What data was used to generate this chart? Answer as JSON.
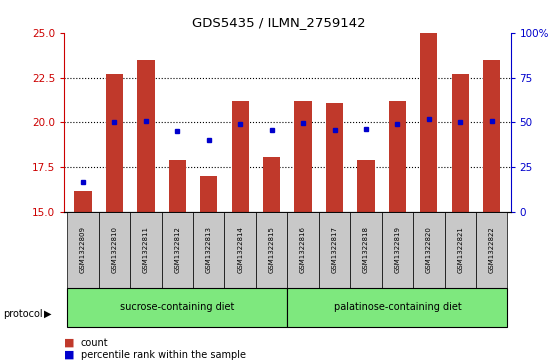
{
  "title": "GDS5435 / ILMN_2759142",
  "samples": [
    "GSM1322809",
    "GSM1322810",
    "GSM1322811",
    "GSM1322812",
    "GSM1322813",
    "GSM1322814",
    "GSM1322815",
    "GSM1322816",
    "GSM1322817",
    "GSM1322818",
    "GSM1322819",
    "GSM1322820",
    "GSM1322821",
    "GSM1322822"
  ],
  "count_values": [
    16.2,
    22.7,
    23.5,
    17.9,
    17.0,
    21.2,
    18.1,
    21.2,
    21.1,
    17.9,
    21.2,
    25.0,
    22.7,
    23.5
  ],
  "percentile_values": [
    17.0,
    50.0,
    51.0,
    45.0,
    40.0,
    49.0,
    46.0,
    49.5,
    46.0,
    46.5,
    49.0,
    52.0,
    50.5,
    51.0
  ],
  "ymin": 15,
  "ymax": 25,
  "yticks": [
    15,
    17.5,
    20,
    22.5,
    25
  ],
  "y2min": 0,
  "y2max": 100,
  "y2ticks": [
    0,
    25,
    50,
    75,
    100
  ],
  "bar_color": "#c0392b",
  "dot_color": "#0000cc",
  "bar_bottom": 15,
  "group1_label": "sucrose-containing diet",
  "group2_label": "palatinose-containing diet",
  "group1_count": 7,
  "group_bg_color": "#7ee87e",
  "tick_bg_color": "#c8c8c8",
  "protocol_label": "protocol",
  "legend_count": "count",
  "legend_percentile": "percentile rank within the sample",
  "ylabel_color": "#cc0000",
  "y2label_color": "#0000cc",
  "bg_color": "#ffffff"
}
